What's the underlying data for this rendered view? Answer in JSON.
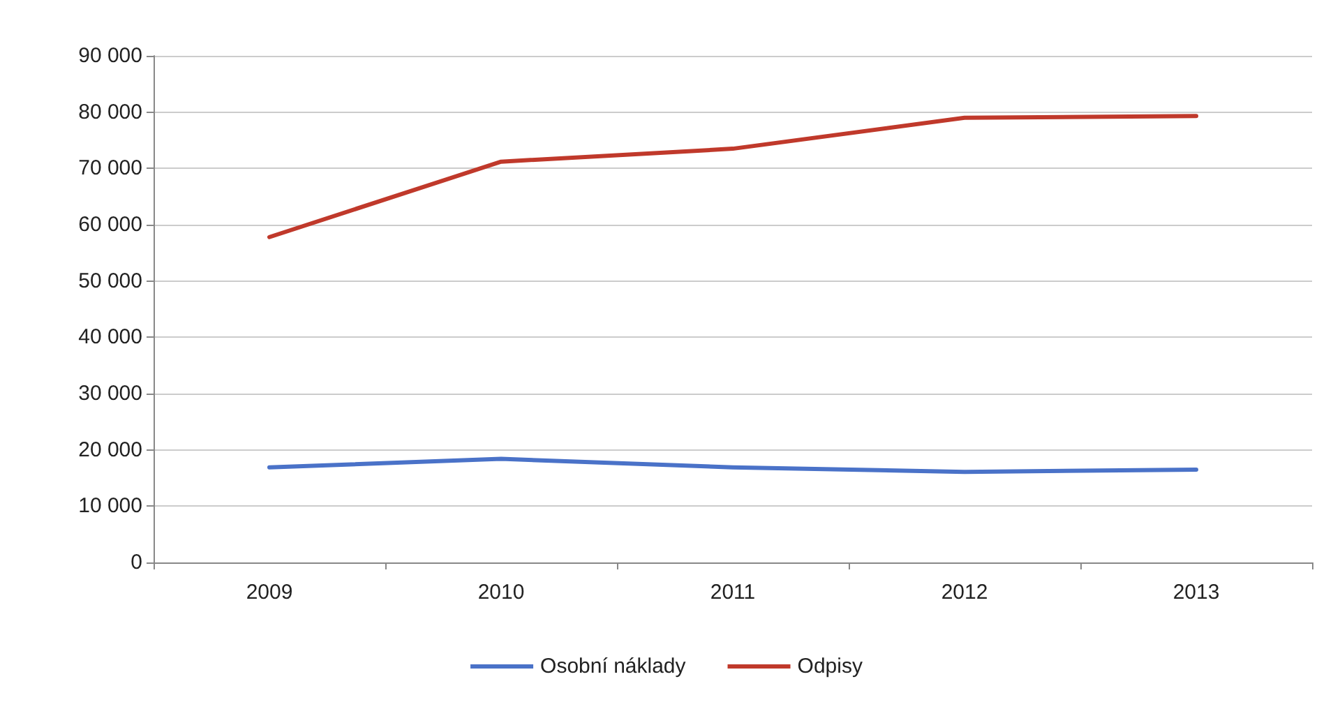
{
  "chart_data": {
    "type": "line",
    "categories": [
      "2009",
      "2010",
      "2011",
      "2012",
      "2013"
    ],
    "series": [
      {
        "name": "Osobní náklady",
        "color": "#4a72c8",
        "values": [
          16900,
          18400,
          16900,
          16100,
          16500
        ]
      },
      {
        "name": "Odpisy",
        "color": "#c0392b",
        "values": [
          57800,
          71200,
          73500,
          79000,
          79300
        ]
      }
    ],
    "ylim": [
      0,
      90000
    ],
    "yticks": [
      0,
      {
        "value": 10000,
        "label": "10 000"
      },
      {
        "value": 20000,
        "label": "20 000"
      },
      {
        "value": 30000,
        "label": "30 000"
      },
      {
        "value": 40000,
        "label": "40 000"
      },
      {
        "value": 50000,
        "label": "50 000"
      },
      {
        "value": 60000,
        "label": "60 000"
      },
      {
        "value": 70000,
        "label": "70 000"
      },
      {
        "value": 80000,
        "label": "80 000"
      },
      {
        "value": 90000,
        "label": "90 000"
      }
    ],
    "grid": "y",
    "legend": "bottom",
    "marker": "none",
    "line_style": "solid"
  }
}
